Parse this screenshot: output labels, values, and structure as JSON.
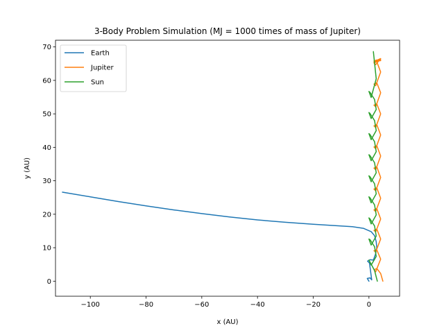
{
  "chart_data": {
    "type": "line",
    "title": "3-Body Problem Simulation (MJ = 1000 times of mass of Jupiter)",
    "xlabel": "x (AU)",
    "ylabel": "y (AU)",
    "xlim": [
      -112.5,
      11
    ],
    "ylim": [
      -4.5,
      72
    ],
    "xticks": [
      -100,
      -80,
      -60,
      -40,
      -20,
      0
    ],
    "yticks": [
      0,
      10,
      20,
      30,
      40,
      50,
      60,
      70
    ],
    "xtick_labels": [
      "−100",
      "−80",
      "−60",
      "−40",
      "−20",
      "0"
    ],
    "ytick_labels": [
      "0",
      "10",
      "20",
      "30",
      "40",
      "50",
      "60",
      "70"
    ],
    "legend_position": "top-left",
    "grid": false,
    "series": [
      {
        "name": "Earth",
        "color": "#1f77b4",
        "x": [
          0,
          -0.6,
          0.4,
          1.0,
          0.2,
          -0.5,
          0.4,
          1.6,
          2.4,
          2.8,
          2.6,
          2.0,
          0.8,
          -2,
          -6,
          -10,
          -20,
          -30,
          -40,
          -50,
          -60,
          -70,
          -80,
          -90,
          -100,
          -110
        ],
        "y": [
          0,
          0.8,
          1.0,
          0.4,
          5.4,
          6.0,
          6.4,
          6.3,
          8.2,
          10.0,
          11.8,
          13.6,
          14.8,
          15.8,
          16.3,
          16.5,
          17.0,
          17.6,
          18.3,
          19.2,
          20.2,
          21.3,
          22.5,
          23.8,
          25.2,
          26.6
        ]
      },
      {
        "name": "Jupiter",
        "color": "#ff7f0e",
        "x": [
          5,
          4.2,
          2.8,
          1.8,
          2.4,
          4.2,
          2.8,
          1.8,
          2.4,
          4.2,
          2.8,
          1.8,
          2.4,
          4.2,
          2.8,
          1.8,
          2.4,
          4.2,
          2.8,
          1.8,
          2.4,
          4.2,
          2.8,
          1.8,
          2.4,
          4.2,
          2.8,
          1.8,
          2.4,
          4.2,
          2.8,
          1.8,
          2.4,
          4.2,
          2.8,
          1.8,
          2.4,
          4.2,
          2.8,
          1.8,
          2.4,
          4.2,
          2.8,
          1.8,
          2.4,
          4.2,
          2.8,
          1.8,
          2.4,
          4.2,
          2.8,
          1.8,
          2.4,
          4.2,
          2.8,
          2.4
        ],
        "y": [
          0,
          2.3,
          3.8,
          3.4,
          2.8,
          6.6,
          9.4,
          9.1,
          8.7,
          12.6,
          15.6,
          15.2,
          14.7,
          18.6,
          21.7,
          21.3,
          20.8,
          24.8,
          27.9,
          27.5,
          27.0,
          31.0,
          34.2,
          33.8,
          33.3,
          37.4,
          40.5,
          40.1,
          39.6,
          43.7,
          46.8,
          46.4,
          45.9,
          50.0,
          53.0,
          52.6,
          52.1,
          56.3,
          59.3,
          58.9,
          58.4,
          62.5,
          65.6,
          65.2,
          64.7,
          66.5,
          66.0,
          65.5,
          65.7,
          65.9,
          66.0,
          65.8,
          65.9,
          66.2,
          66.1,
          66.0
        ]
      },
      {
        "name": "Sun",
        "color": "#2ca02c",
        "x": [
          3,
          2.0,
          0.4,
          0.0,
          0.8,
          2.6,
          2.0,
          0.4,
          0.0,
          0.8,
          2.6,
          2.0,
          0.4,
          0.0,
          0.8,
          2.6,
          2.0,
          0.4,
          0.0,
          0.8,
          2.6,
          2.0,
          0.4,
          0.0,
          0.8,
          2.6,
          2.0,
          0.4,
          0.0,
          0.8,
          2.6,
          2.0,
          0.4,
          0.0,
          0.8,
          2.6,
          2.0,
          0.4,
          0.0,
          0.8,
          2.6,
          2.0,
          0.4,
          0.0,
          0.8,
          2.6,
          1.6
        ],
        "y": [
          0,
          3.2,
          5.7,
          6.3,
          4.8,
          7.4,
          10.3,
          12.4,
          12.6,
          10.8,
          13.5,
          16.5,
          18.6,
          18.9,
          17.1,
          19.8,
          22.8,
          24.9,
          25.2,
          23.4,
          26.1,
          29.1,
          31.2,
          31.5,
          29.7,
          32.4,
          35.4,
          37.5,
          37.8,
          36.0,
          38.7,
          41.7,
          43.8,
          44.1,
          42.3,
          45.0,
          48.0,
          50.1,
          50.4,
          48.6,
          51.3,
          54.3,
          56.4,
          56.7,
          54.9,
          60.5,
          68.6
        ]
      }
    ]
  }
}
